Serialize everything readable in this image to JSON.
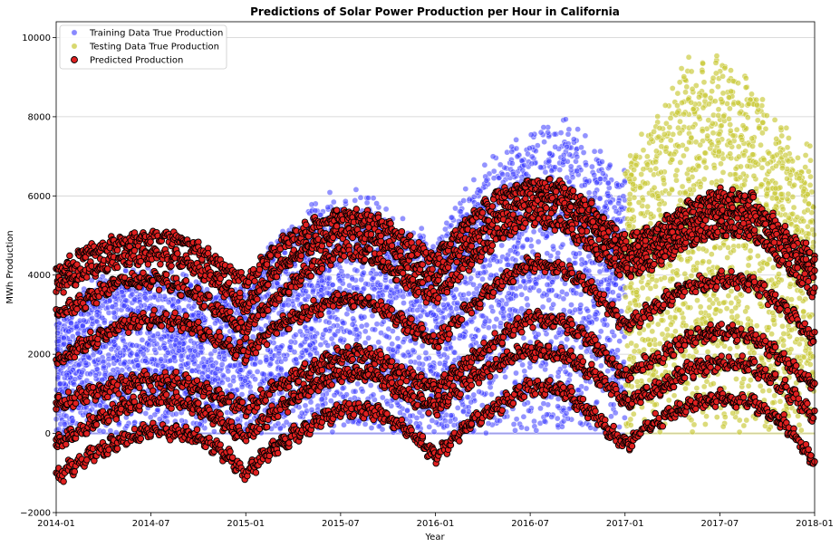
{
  "chart_data": {
    "type": "scatter",
    "title": "Predictions of Solar Power Production per Hour in California",
    "xlabel": "Year",
    "ylabel": "MWh Production",
    "xlim": [
      "2014-01",
      "2018-01"
    ],
    "ylim": [
      -2000,
      10400
    ],
    "x_ticks": [
      "2014-01",
      "2014-07",
      "2015-01",
      "2015-07",
      "2016-01",
      "2016-07",
      "2017-01",
      "2017-07",
      "2018-01"
    ],
    "y_ticks": [
      -2000,
      0,
      2000,
      4000,
      6000,
      8000,
      10000
    ],
    "y_tick_labels": [
      "−2000",
      "0",
      "2000",
      "4000",
      "6000",
      "8000",
      "10000"
    ],
    "grid": "horizontal",
    "legend_position": "top-left",
    "series": [
      {
        "name": "Training Data True Production",
        "color": "#3b3bff",
        "date_range": [
          "2014-01",
          "2017-01"
        ],
        "envelope": {
          "dates": [
            "2014-01",
            "2014-03",
            "2014-05",
            "2014-07",
            "2014-09",
            "2014-11",
            "2015-01",
            "2015-03",
            "2015-05",
            "2015-07",
            "2015-09",
            "2015-11",
            "2016-01",
            "2016-03",
            "2016-05",
            "2016-07",
            "2016-09",
            "2016-11",
            "2017-01"
          ],
          "upper": [
            3000,
            3900,
            4200,
            4300,
            4100,
            3700,
            4000,
            5200,
            5900,
            6300,
            6200,
            5500,
            5000,
            6500,
            7400,
            7800,
            8300,
            7600,
            6800
          ],
          "lower": [
            0,
            0,
            0,
            0,
            0,
            0,
            0,
            0,
            0,
            0,
            0,
            0,
            0,
            0,
            0,
            0,
            0,
            0,
            0
          ]
        }
      },
      {
        "name": "Testing Data True Production",
        "color": "#c8c832",
        "date_range": [
          "2017-01",
          "2018-01"
        ],
        "envelope": {
          "dates": [
            "2017-01",
            "2017-03",
            "2017-05",
            "2017-07",
            "2017-09",
            "2017-11",
            "2018-01"
          ],
          "upper": [
            7100,
            8300,
            9600,
            9800,
            9300,
            7800,
            7200
          ],
          "lower": [
            0,
            0,
            0,
            0,
            0,
            0,
            0
          ]
        }
      },
      {
        "name": "Predicted Production",
        "color": "#e02020",
        "edge_color": "#000000",
        "date_range": [
          "2014-01",
          "2018-01"
        ],
        "bands": [
          {
            "dates": [
              "2014-01",
              "2014-03",
              "2014-05",
              "2014-07",
              "2014-09",
              "2014-11",
              "2015-01",
              "2015-03",
              "2015-05",
              "2015-07",
              "2015-09",
              "2015-11",
              "2016-01",
              "2016-03",
              "2016-05",
              "2016-07",
              "2016-09",
              "2016-11",
              "2017-01",
              "2017-03",
              "2017-05",
              "2017-07",
              "2017-09",
              "2017-11",
              "2018-01"
            ],
            "values": [
              4000,
              4600,
              4800,
              5000,
              4900,
              4400,
              3800,
              4700,
              5200,
              5500,
              5400,
              4900,
              4400,
              5300,
              6000,
              6300,
              6200,
              5600,
              4800,
              5100,
              5700,
              6000,
              5900,
              5100,
              4400
            ]
          },
          {
            "dates": [
              "2014-01",
              "2014-03",
              "2014-05",
              "2014-07",
              "2014-09",
              "2014-11",
              "2015-01",
              "2015-03",
              "2015-05",
              "2015-07",
              "2015-09",
              "2015-11",
              "2016-01",
              "2016-03",
              "2016-05",
              "2016-07",
              "2016-09",
              "2016-11",
              "2017-01",
              "2017-03",
              "2017-05",
              "2017-07",
              "2017-09",
              "2017-11",
              "2018-01"
            ],
            "values": [
              3700,
              4100,
              4400,
              4500,
              4400,
              3900,
              3200,
              4200,
              4700,
              5100,
              5000,
              4400,
              3900,
              4800,
              5500,
              5900,
              5800,
              5200,
              4500,
              4800,
              5300,
              5600,
              5500,
              4800,
              4000
            ]
          },
          {
            "dates": [
              "2014-01",
              "2014-03",
              "2014-05",
              "2014-07",
              "2014-09",
              "2014-11",
              "2015-01",
              "2015-03",
              "2015-05",
              "2015-07",
              "2015-09",
              "2015-11",
              "2016-01",
              "2016-03",
              "2016-05",
              "2016-07",
              "2016-09",
              "2016-11",
              "2017-01",
              "2017-03",
              "2017-05",
              "2017-07",
              "2017-09",
              "2017-11",
              "2018-01"
            ],
            "values": [
              3000,
              3400,
              3800,
              3900,
              3700,
              3200,
              2600,
              3500,
              4100,
              4600,
              4500,
              3900,
              3400,
              4300,
              5000,
              5500,
              5300,
              4700,
              4100,
              4400,
              4900,
              5200,
              5100,
              4400,
              3600
            ]
          },
          {
            "dates": [
              "2014-01",
              "2014-03",
              "2014-05",
              "2014-07",
              "2014-09",
              "2014-11",
              "2015-01",
              "2015-03",
              "2015-05",
              "2015-07",
              "2015-09",
              "2015-11",
              "2016-01",
              "2016-03",
              "2016-05",
              "2016-07",
              "2016-09",
              "2016-11",
              "2017-01",
              "2017-03",
              "2017-05",
              "2017-07",
              "2017-09",
              "2017-11",
              "2018-01"
            ],
            "values": [
              1800,
              2300,
              2700,
              2900,
              2800,
              2400,
              2000,
              2700,
              3100,
              3400,
              3300,
              2800,
              2300,
              3100,
              3800,
              4300,
              4200,
              3600,
              2700,
              3200,
              3700,
              3900,
              3800,
              3200,
              2400
            ]
          },
          {
            "dates": [
              "2014-01",
              "2014-03",
              "2014-05",
              "2014-07",
              "2014-09",
              "2014-11",
              "2015-01",
              "2015-03",
              "2015-05",
              "2015-07",
              "2015-09",
              "2015-11",
              "2016-01",
              "2016-03",
              "2016-05",
              "2016-07",
              "2016-09",
              "2016-11",
              "2017-01",
              "2017-03",
              "2017-05",
              "2017-07",
              "2017-09",
              "2017-11",
              "2018-01"
            ],
            "values": [
              700,
              1000,
              1200,
              1400,
              1300,
              1000,
              600,
              1200,
              1600,
              2000,
              2000,
              1500,
              1100,
              1800,
              2400,
              2900,
              2800,
              2300,
              1500,
              1900,
              2400,
              2600,
              2500,
              1900,
              1200
            ]
          },
          {
            "dates": [
              "2014-01",
              "2014-03",
              "2014-05",
              "2014-07",
              "2014-09",
              "2014-11",
              "2015-01",
              "2015-03",
              "2015-05",
              "2015-07",
              "2015-09",
              "2015-11",
              "2016-01",
              "2016-03",
              "2016-05",
              "2016-07",
              "2016-09",
              "2016-11",
              "2017-01",
              "2017-03",
              "2017-05",
              "2017-07",
              "2017-09",
              "2017-11",
              "2018-01"
            ],
            "values": [
              -300,
              200,
              600,
              900,
              800,
              400,
              -100,
              600,
              1100,
              1500,
              1500,
              1000,
              600,
              1300,
              1800,
              2100,
              2000,
              1500,
              800,
              1100,
              1600,
              1800,
              1700,
              1200,
              400
            ]
          },
          {
            "dates": [
              "2014-01",
              "2014-03",
              "2014-05",
              "2014-07",
              "2014-09",
              "2014-11",
              "2015-01",
              "2015-03",
              "2015-05",
              "2015-07",
              "2015-09",
              "2015-11",
              "2016-01",
              "2016-03",
              "2016-05",
              "2016-07",
              "2016-09",
              "2016-11",
              "2017-01",
              "2017-03",
              "2017-05",
              "2017-07",
              "2017-09",
              "2017-11",
              "2018-01"
            ],
            "values": [
              -1100,
              -600,
              -200,
              100,
              0,
              -300,
              -1000,
              -300,
              200,
              600,
              600,
              200,
              -600,
              200,
              700,
              1200,
              1100,
              500,
              -300,
              300,
              700,
              900,
              800,
              300,
              -700
            ]
          }
        ]
      }
    ]
  }
}
